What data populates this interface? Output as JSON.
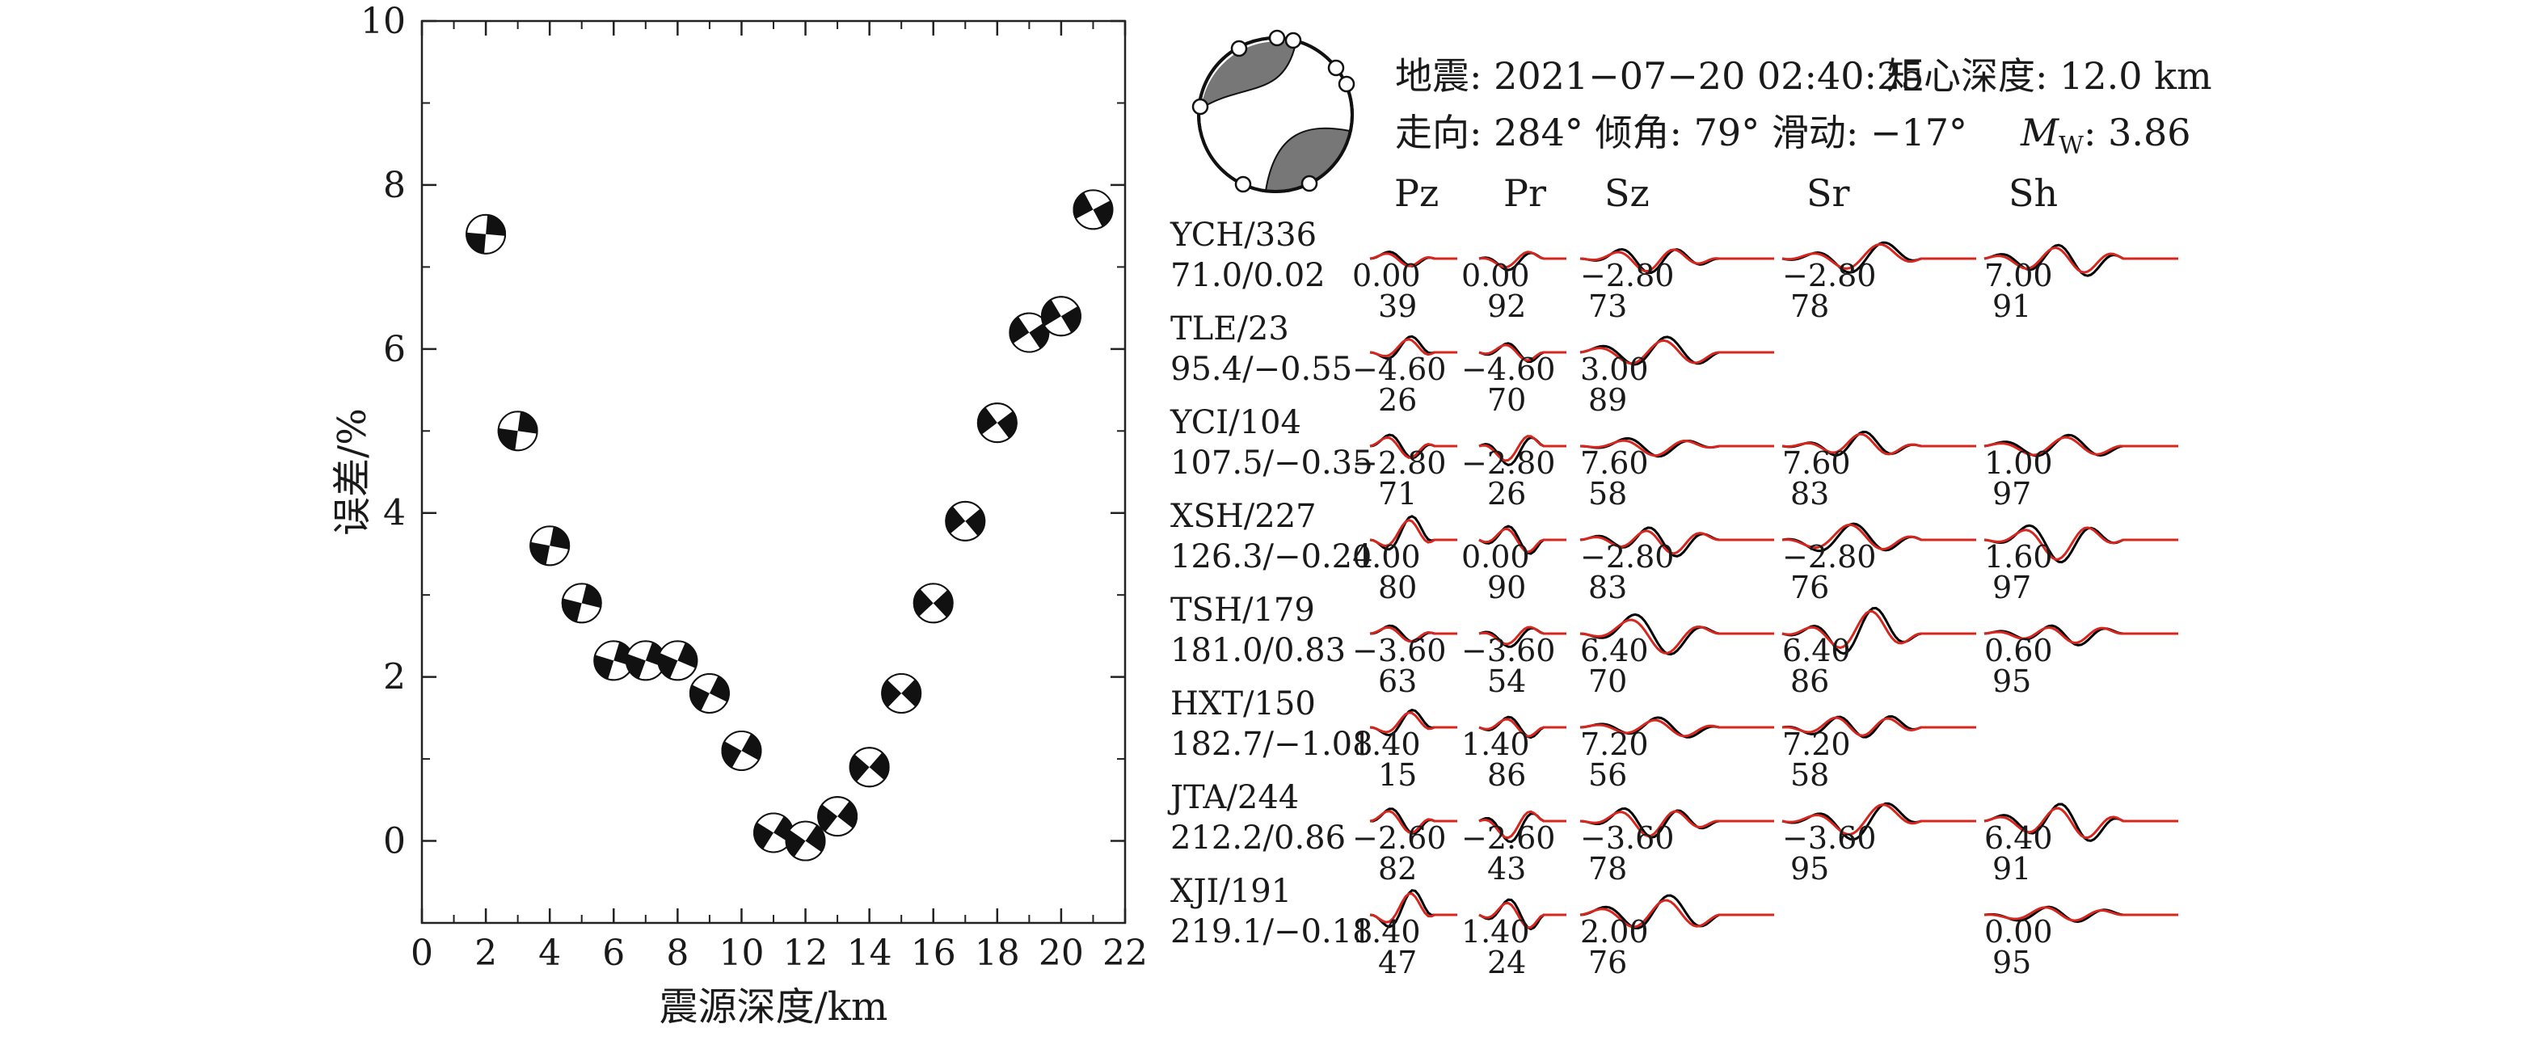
{
  "chart_data": [
    {
      "type": "scatter",
      "xlabel": "震源深度/km",
      "ylabel": "误差/%",
      "xlim": [
        0,
        22
      ],
      "ylim": [
        -1,
        10
      ],
      "xticks": [
        "0",
        "2",
        "4",
        "6",
        "8",
        "10",
        "12",
        "14",
        "16",
        "18",
        "20",
        "22"
      ],
      "yticks": [
        "0",
        "2",
        "4",
        "6",
        "8",
        "10"
      ],
      "marker": "beachball",
      "points": [
        {
          "x": 2,
          "y": 7.4
        },
        {
          "x": 3,
          "y": 5.0
        },
        {
          "x": 4,
          "y": 3.6
        },
        {
          "x": 5,
          "y": 2.9
        },
        {
          "x": 6,
          "y": 2.2
        },
        {
          "x": 7,
          "y": 2.2
        },
        {
          "x": 8,
          "y": 2.2
        },
        {
          "x": 9,
          "y": 1.8
        },
        {
          "x": 10,
          "y": 1.1
        },
        {
          "x": 11,
          "y": 0.1
        },
        {
          "x": 12,
          "y": 0.0
        },
        {
          "x": 13,
          "y": 0.3
        },
        {
          "x": 14,
          "y": 0.9
        },
        {
          "x": 15,
          "y": 1.8
        },
        {
          "x": 16,
          "y": 2.9
        },
        {
          "x": 17,
          "y": 3.9
        },
        {
          "x": 18,
          "y": 5.1
        },
        {
          "x": 19,
          "y": 6.2
        },
        {
          "x": 20,
          "y": 6.4
        },
        {
          "x": 21,
          "y": 7.7
        }
      ]
    },
    {
      "type": "line",
      "header": {
        "line1_a": "地震: 2021−07−20 02:40:25",
        "line1_b": "矩心深度: 12.0 km",
        "line2_a": "走向: 284° 倾角: 79° 滑动: −17°",
        "mw_label": "M",
        "mw_sub": "W",
        "mw_value": ": 3.86"
      },
      "components": [
        "Pz",
        "Pr",
        "Sz",
        "Sr",
        "Sh"
      ],
      "colors": {
        "observed": "#000000",
        "synthetic": "#d7261e"
      },
      "stations": [
        {
          "name": "YCH/336",
          "info": "71.0/0.02",
          "traces": [
            {
              "comp": "Pz",
              "shift": "0.00",
              "cc": "39"
            },
            {
              "comp": "Pr",
              "shift": "0.00",
              "cc": "92"
            },
            {
              "comp": "Sz",
              "shift": "−2.80",
              "cc": "73"
            },
            {
              "comp": "Sr",
              "shift": "−2.80",
              "cc": "78"
            },
            {
              "comp": "Sh",
              "shift": "7.00",
              "cc": "91"
            }
          ]
        },
        {
          "name": "TLE/23",
          "info": "95.4/−0.55",
          "traces": [
            {
              "comp": "Pz",
              "shift": "−4.60",
              "cc": "26"
            },
            {
              "comp": "Pr",
              "shift": "−4.60",
              "cc": "70"
            },
            {
              "comp": "Sz",
              "shift": "3.00",
              "cc": "89"
            }
          ]
        },
        {
          "name": "YCI/104",
          "info": "107.5/−0.35",
          "traces": [
            {
              "comp": "Pz",
              "shift": "−2.80",
              "cc": "71"
            },
            {
              "comp": "Pr",
              "shift": "−2.80",
              "cc": "26"
            },
            {
              "comp": "Sz",
              "shift": "7.60",
              "cc": "58"
            },
            {
              "comp": "Sr",
              "shift": "7.60",
              "cc": "83"
            },
            {
              "comp": "Sh",
              "shift": "1.00",
              "cc": "97"
            }
          ]
        },
        {
          "name": "XSH/227",
          "info": "126.3/−0.24",
          "traces": [
            {
              "comp": "Pz",
              "shift": "0.00",
              "cc": "80"
            },
            {
              "comp": "Pr",
              "shift": "0.00",
              "cc": "90"
            },
            {
              "comp": "Sz",
              "shift": "−2.80",
              "cc": "83"
            },
            {
              "comp": "Sr",
              "shift": "−2.80",
              "cc": "76"
            },
            {
              "comp": "Sh",
              "shift": "1.60",
              "cc": "97"
            }
          ]
        },
        {
          "name": "TSH/179",
          "info": "181.0/0.83",
          "traces": [
            {
              "comp": "Pz",
              "shift": "−3.60",
              "cc": "63"
            },
            {
              "comp": "Pr",
              "shift": "−3.60",
              "cc": "54"
            },
            {
              "comp": "Sz",
              "shift": "6.40",
              "cc": "70"
            },
            {
              "comp": "Sr",
              "shift": "6.40",
              "cc": "86"
            },
            {
              "comp": "Sh",
              "shift": "0.60",
              "cc": "95"
            }
          ]
        },
        {
          "name": "HXT/150",
          "info": "182.7/−1.08",
          "traces": [
            {
              "comp": "Pz",
              "shift": "1.40",
              "cc": "15"
            },
            {
              "comp": "Pr",
              "shift": "1.40",
              "cc": "86"
            },
            {
              "comp": "Sz",
              "shift": "7.20",
              "cc": "56"
            },
            {
              "comp": "Sr",
              "shift": "7.20",
              "cc": "58"
            }
          ]
        },
        {
          "name": "JTA/244",
          "info": "212.2/0.86",
          "traces": [
            {
              "comp": "Pz",
              "shift": "−2.60",
              "cc": "82"
            },
            {
              "comp": "Pr",
              "shift": "−2.60",
              "cc": "43"
            },
            {
              "comp": "Sz",
              "shift": "−3.60",
              "cc": "78"
            },
            {
              "comp": "Sr",
              "shift": "−3.60",
              "cc": "95"
            },
            {
              "comp": "Sh",
              "shift": "6.40",
              "cc": "91"
            }
          ]
        },
        {
          "name": "XJI/191",
          "info": "219.1/−0.18",
          "traces": [
            {
              "comp": "Pz",
              "shift": "1.40",
              "cc": "47"
            },
            {
              "comp": "Pr",
              "shift": "1.40",
              "cc": "24"
            },
            {
              "comp": "Sz",
              "shift": "2.00",
              "cc": "76"
            },
            {
              "comp": "Sh",
              "shift": "0.00",
              "cc": "95"
            }
          ]
        }
      ]
    }
  ]
}
